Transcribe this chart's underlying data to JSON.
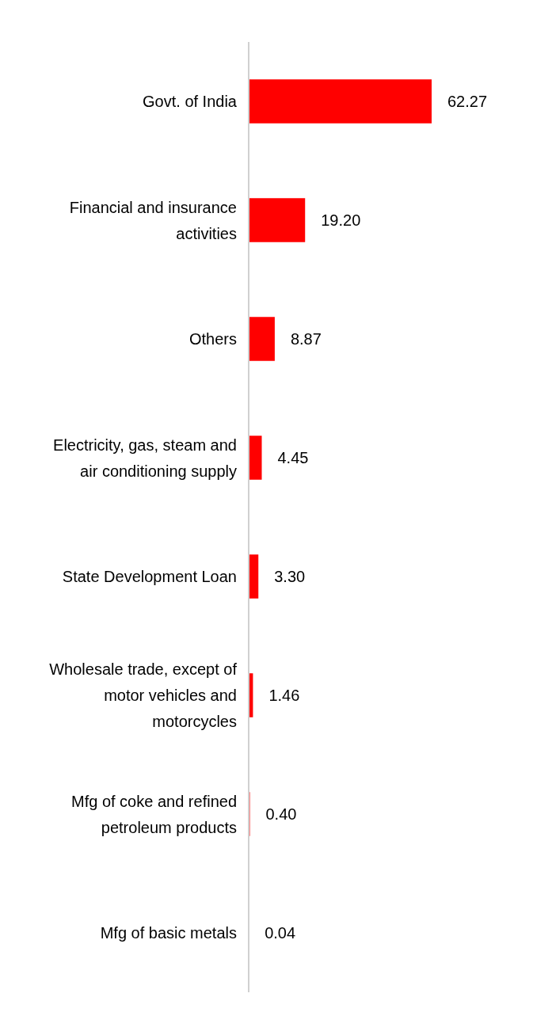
{
  "chart_data": {
    "type": "bar",
    "orientation": "horizontal",
    "categories": [
      "Govt. of India",
      "Financial and insurance activities",
      "Others",
      "Electricity, gas, steam and air conditioning supply",
      "State Development Loan",
      "Wholesale trade, except of motor vehicles and motorcycles",
      "Mfg of coke and refined petroleum products",
      "Mfg of basic metals"
    ],
    "values": [
      62.27,
      19.2,
      8.87,
      4.45,
      3.3,
      1.46,
      0.4,
      0.04
    ],
    "value_labels": [
      "62.27",
      "19.20",
      "8.87",
      "4.45",
      "3.30",
      "1.46",
      "0.40",
      "0.04"
    ],
    "color": "#ff0000"
  }
}
